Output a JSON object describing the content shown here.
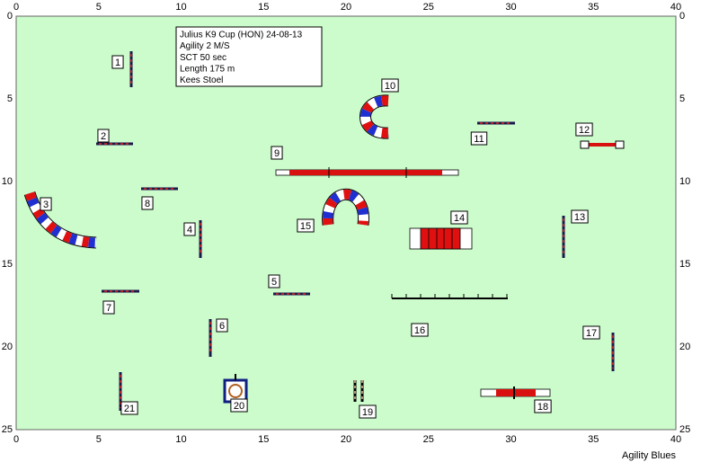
{
  "course_info": {
    "lines": [
      "Julius K9 Cup (HON) 24-08-13",
      "Agility 2 M/S",
      "SCT 50 sec",
      "Length 175 m",
      "Kees Stoel"
    ]
  },
  "axes": {
    "x_ticks": [
      0,
      5,
      10,
      15,
      20,
      25,
      30,
      35,
      40
    ],
    "y_ticks": [
      0,
      5,
      10,
      15,
      20,
      25
    ]
  },
  "obstacles": [
    1,
    2,
    3,
    4,
    5,
    6,
    7,
    8,
    9,
    10,
    11,
    12,
    13,
    14,
    15,
    16,
    17,
    18,
    19,
    20,
    21
  ],
  "footer": "Agility Blues"
}
